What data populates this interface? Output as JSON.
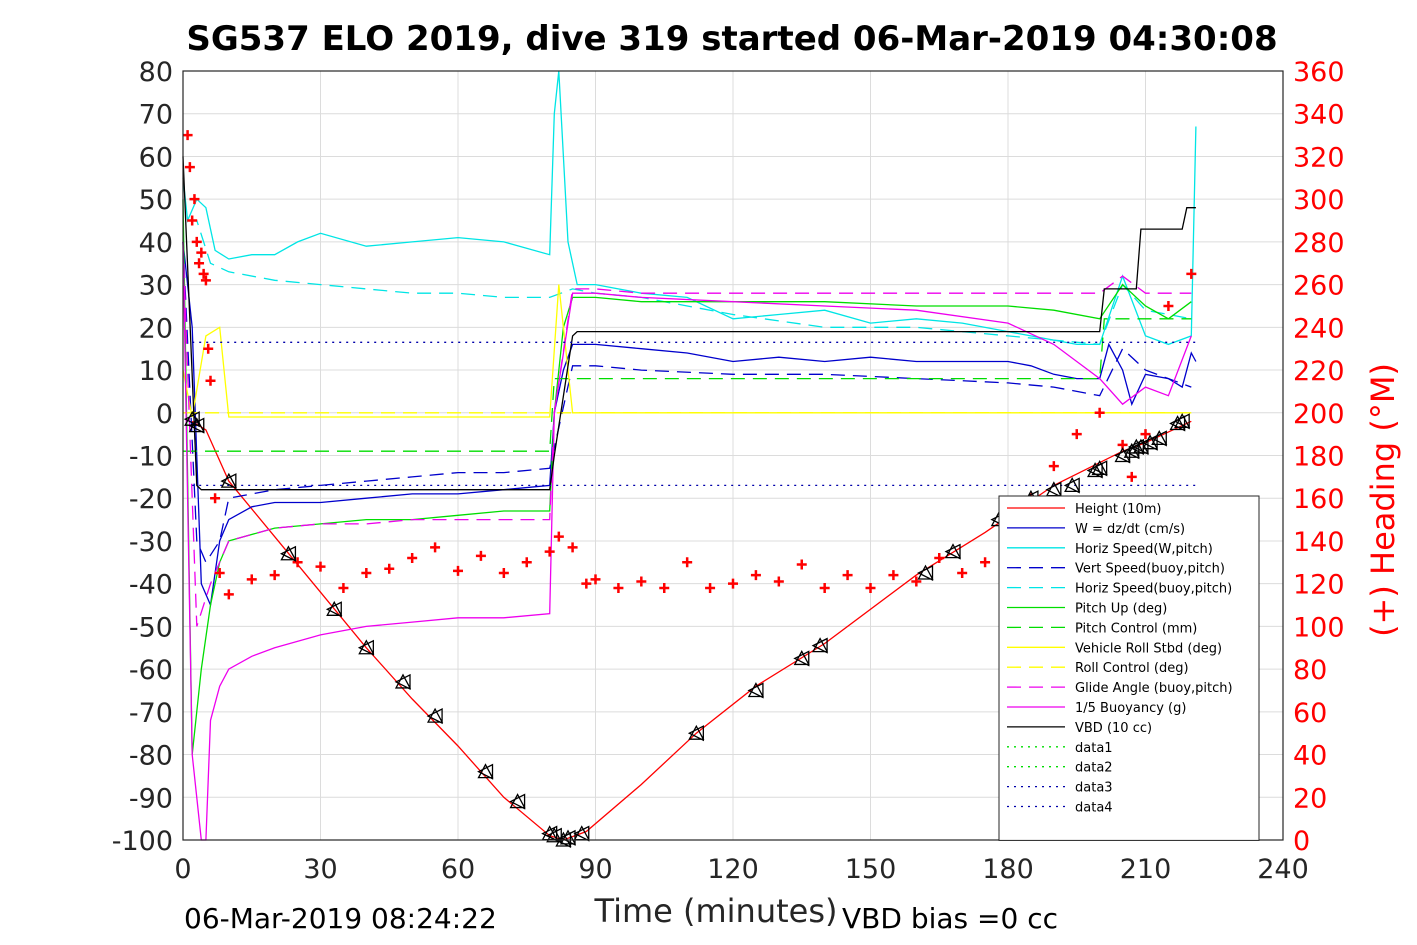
{
  "chart_data": {
    "type": "line",
    "title": "SG537 ELO 2019, dive 319 started 06-Mar-2019 04:30:08",
    "xlabel": "Time (minutes)",
    "ylabel_right": "(+) Heading (°M)",
    "footer_left": "06-Mar-2019 08:24:22",
    "footer_right": "VBD bias =0 cc",
    "xlim": [
      0,
      240
    ],
    "ylim": [
      -100,
      80
    ],
    "ylim_right": [
      0,
      360
    ],
    "xticks": [
      0,
      30,
      60,
      90,
      120,
      150,
      180,
      210,
      240
    ],
    "yticks": [
      -100,
      -90,
      -80,
      -70,
      -60,
      -50,
      -40,
      -30,
      -20,
      -10,
      0,
      10,
      20,
      30,
      40,
      50,
      60,
      70,
      80
    ],
    "yticks_right": [
      0,
      20,
      40,
      60,
      80,
      100,
      120,
      140,
      160,
      180,
      200,
      220,
      240,
      260,
      280,
      300,
      320,
      340,
      360
    ],
    "grid": true,
    "legend_position": "lower-right",
    "colors": {
      "right_axis": "#ff0000",
      "heading": "#ff0000"
    },
    "series": [
      {
        "name": "Height (10m)",
        "color": "#ff0000",
        "style": "solid",
        "x": [
          2,
          5,
          10,
          20,
          30,
          40,
          50,
          60,
          70,
          80,
          83,
          88,
          100,
          112,
          125,
          140,
          160,
          175,
          190,
          205,
          210,
          220
        ],
        "y": [
          -2,
          -4,
          -16,
          -29,
          -42,
          -55,
          -67,
          -78,
          -90,
          -99,
          -100,
          -98,
          -87,
          -75,
          -64,
          -54,
          -38,
          -28,
          -17,
          -9,
          -7,
          -2
        ]
      },
      {
        "name": "W = dz/dt (cm/s)",
        "color": "#0000cc",
        "style": "solid",
        "x": [
          0,
          2,
          4,
          6,
          8,
          10,
          15,
          20,
          30,
          40,
          50,
          60,
          70,
          80,
          81,
          83,
          85,
          90,
          100,
          110,
          120,
          130,
          140,
          150,
          160,
          170,
          180,
          185,
          190,
          195,
          200,
          202,
          205,
          207,
          210,
          215,
          218,
          220,
          221
        ],
        "y": [
          40,
          20,
          -40,
          -45,
          -30,
          -25,
          -22,
          -21,
          -21,
          -20,
          -19,
          -19,
          -18,
          -17,
          0,
          10,
          16,
          16,
          15,
          14,
          12,
          13,
          12,
          13,
          12,
          12,
          12,
          11,
          9,
          8,
          8,
          16,
          10,
          2,
          9,
          8,
          6,
          14,
          12
        ]
      },
      {
        "name": "Horiz Speed(W,pitch)",
        "color": "#00e5e5",
        "style": "solid",
        "x": [
          0,
          1,
          3,
          5,
          7,
          10,
          15,
          20,
          25,
          30,
          40,
          50,
          60,
          70,
          80,
          81,
          82,
          84,
          86,
          90,
          100,
          110,
          120,
          130,
          140,
          150,
          160,
          170,
          180,
          185,
          190,
          195,
          200,
          205,
          210,
          215,
          220,
          221
        ],
        "y": [
          55,
          45,
          50,
          48,
          38,
          36,
          37,
          37,
          40,
          42,
          39,
          40,
          41,
          40,
          37,
          70,
          80,
          40,
          30,
          30,
          28,
          27,
          22,
          23,
          24,
          21,
          22,
          21,
          19,
          18,
          17,
          16,
          16,
          32,
          18,
          16,
          18,
          67
        ]
      },
      {
        "name": "Vert Speed(buoy,pitch)",
        "color": "#0000cc",
        "style": "dash",
        "x": [
          0,
          3,
          5,
          8,
          10,
          20,
          30,
          40,
          50,
          60,
          70,
          80,
          85,
          90,
          100,
          120,
          140,
          160,
          180,
          190,
          200,
          205,
          210,
          215,
          220
        ],
        "y": [
          40,
          -30,
          -35,
          -30,
          -20,
          -18,
          -17,
          -16,
          -15,
          -14,
          -14,
          -13,
          11,
          11,
          10,
          9,
          9,
          8,
          7,
          6,
          4,
          15,
          10,
          8,
          6
        ]
      },
      {
        "name": "Horiz Speed(buoy,pitch)",
        "color": "#00e5e5",
        "style": "dash",
        "x": [
          1,
          3,
          6,
          10,
          20,
          30,
          40,
          50,
          60,
          70,
          80,
          85,
          90,
          100,
          120,
          140,
          160,
          180,
          190,
          200,
          205,
          210,
          220
        ],
        "y": [
          45,
          45,
          35,
          33,
          31,
          30,
          29,
          28,
          28,
          27,
          27,
          29,
          28,
          27,
          23,
          20,
          20,
          18,
          17,
          16,
          30,
          24,
          22
        ]
      },
      {
        "name": "Pitch Up (deg)",
        "color": "#00dd00",
        "style": "solid",
        "x": [
          0,
          2,
          4,
          6,
          8,
          10,
          20,
          30,
          40,
          50,
          60,
          70,
          80,
          81,
          83,
          85,
          90,
          100,
          120,
          140,
          160,
          180,
          190,
          200,
          205,
          210,
          215,
          220
        ],
        "y": [
          50,
          -80,
          -60,
          -45,
          -35,
          -30,
          -27,
          -26,
          -25,
          -25,
          -24,
          -23,
          -23,
          0,
          20,
          27,
          27,
          26,
          26,
          26,
          25,
          25,
          24,
          22,
          30,
          25,
          22,
          26
        ]
      },
      {
        "name": "Pitch Control (mm)",
        "color": "#00dd00",
        "style": "dash",
        "x": [
          0,
          5,
          10,
          80,
          81,
          85,
          200,
          201,
          220
        ],
        "y": [
          -9,
          -9,
          -9,
          -9,
          8,
          8,
          8,
          22,
          22
        ]
      },
      {
        "name": "Vehicle Roll Stbd (deg)",
        "color": "#ffff00",
        "style": "solid",
        "x": [
          0,
          2,
          5,
          8,
          10,
          20,
          30,
          40,
          50,
          60,
          70,
          80,
          82,
          85,
          90,
          100,
          120,
          140,
          160,
          180,
          200,
          210,
          220
        ],
        "y": [
          10,
          -1,
          18,
          20,
          -1,
          -1,
          -1,
          -1,
          -1,
          -1,
          -1,
          -1,
          30,
          0,
          0,
          0,
          0,
          0,
          0,
          0,
          0,
          0,
          0
        ]
      },
      {
        "name": "Roll Control (deg)",
        "color": "#ffff00",
        "style": "dash",
        "x": [
          0,
          5,
          10,
          80,
          85,
          220
        ],
        "y": [
          0,
          0,
          0,
          0,
          0,
          0
        ]
      },
      {
        "name": "Glide Angle (buoy,pitch)",
        "color": "#ee00ee",
        "style": "dash",
        "x": [
          0,
          3,
          6,
          10,
          20,
          30,
          40,
          50,
          60,
          70,
          80,
          81,
          85,
          90,
          100,
          120,
          140,
          160,
          180,
          200,
          205,
          210,
          220
        ],
        "y": [
          40,
          -50,
          -40,
          -30,
          -27,
          -26,
          -26,
          -25,
          -25,
          -25,
          -25,
          0,
          29,
          29,
          28,
          28,
          28,
          28,
          28,
          28,
          32,
          28,
          28
        ]
      },
      {
        "name": "1/5 Buoyancy (g)",
        "color": "#ee00ee",
        "style": "solid",
        "x": [
          0,
          2,
          4,
          5,
          6,
          8,
          10,
          15,
          20,
          30,
          40,
          50,
          60,
          70,
          80,
          81,
          85,
          90,
          100,
          120,
          140,
          160,
          180,
          190,
          200,
          205,
          210,
          215,
          220
        ],
        "y": [
          40,
          -80,
          -100,
          -100,
          -72,
          -64,
          -60,
          -57,
          -55,
          -52,
          -50,
          -49,
          -48,
          -48,
          -47,
          0,
          28,
          28,
          27,
          26,
          25,
          24,
          21,
          16,
          8,
          2,
          6,
          4,
          18
        ]
      },
      {
        "name": "VBD (10 cc)",
        "color": "#000000",
        "style": "solid",
        "x": [
          0,
          3,
          4,
          80,
          81,
          85,
          86,
          200,
          201,
          208,
          209,
          218,
          219,
          221
        ],
        "y": [
          60,
          -17,
          -18,
          -18,
          -10,
          18,
          19,
          19,
          29,
          29,
          43,
          43,
          48,
          48
        ]
      },
      {
        "name": "data1",
        "color": "#00dd00",
        "style": "dot",
        "x": [],
        "y": []
      },
      {
        "name": "data2",
        "color": "#00dd00",
        "style": "dot",
        "x": [],
        "y": []
      },
      {
        "name": "data3",
        "color": "#0000aa",
        "style": "dot",
        "x": [
          2,
          221
        ],
        "y": [
          16.5,
          16.5
        ]
      },
      {
        "name": "data4",
        "color": "#0000aa",
        "style": "dot",
        "x": [
          2,
          221
        ],
        "y": [
          -17,
          -17
        ]
      }
    ],
    "heading_points": {
      "axis": "right",
      "marker": "+",
      "color": "#ff0000",
      "x": [
        1,
        1.5,
        2,
        2.5,
        3,
        3.5,
        4,
        4.5,
        5,
        5.5,
        6,
        7,
        8,
        10,
        15,
        20,
        25,
        30,
        35,
        40,
        45,
        50,
        55,
        60,
        65,
        70,
        75,
        80,
        82,
        85,
        88,
        90,
        95,
        100,
        105,
        110,
        115,
        120,
        125,
        130,
        135,
        140,
        145,
        150,
        155,
        160,
        165,
        170,
        175,
        180,
        185,
        190,
        195,
        200,
        205,
        207,
        210,
        215,
        220
      ],
      "y": [
        330,
        315,
        290,
        300,
        280,
        270,
        275,
        265,
        262,
        230,
        215,
        160,
        125,
        115,
        122,
        124,
        130,
        128,
        118,
        125,
        127,
        132,
        137,
        126,
        133,
        125,
        130,
        135,
        142,
        137,
        120,
        122,
        118,
        121,
        118,
        130,
        118,
        120,
        124,
        121,
        129,
        118,
        124,
        118,
        124,
        121,
        132,
        125,
        130,
        118,
        160,
        175,
        190,
        200,
        185,
        170,
        190,
        250,
        265
      ]
    },
    "markers": {
      "symbol": "triangles",
      "color": "#000000",
      "x": [
        2,
        3,
        10,
        23,
        33,
        40,
        48,
        55,
        66,
        73,
        80,
        81,
        83,
        84,
        87,
        112,
        125,
        135,
        139,
        162,
        168,
        178,
        185,
        190,
        194,
        199,
        200,
        205,
        207,
        208,
        209,
        211,
        213,
        217,
        218
      ],
      "y": [
        -1.5,
        -3,
        -16,
        -33,
        -46,
        -55,
        -63,
        -71,
        -84,
        -91,
        -98.5,
        -99,
        -100,
        -99.5,
        -98.5,
        -75,
        -65,
        -57.5,
        -54.5,
        -37.5,
        -32.5,
        -25,
        -20,
        -18,
        -17,
        -13.5,
        -13,
        -10,
        -9,
        -8,
        -8,
        -7,
        -6,
        -2.5,
        -2
      ]
    }
  }
}
